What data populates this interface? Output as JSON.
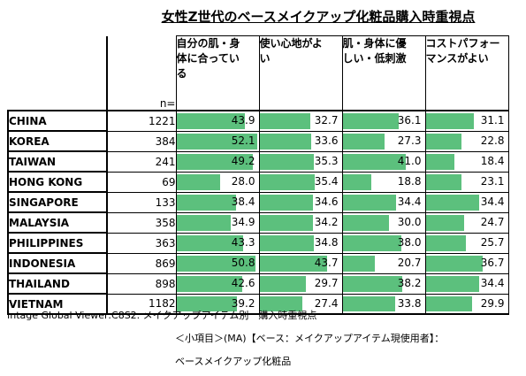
{
  "chart_data": {
    "type": "table",
    "title": "女性Z世代のベースメイクアップ化粧品購入時重視点",
    "n_label": "n=",
    "columns": [
      "自分の肌・身体に合っている",
      "使い心地がよい",
      "肌・身体に優しい・低刺激",
      "コストパフォーマンスがよい"
    ],
    "column_lines": [
      [
        "自分の肌・身",
        "体に合ってい",
        "る"
      ],
      [
        "使い心地がよ",
        "い"
      ],
      [
        "肌・身体に優",
        "しい・低刺激"
      ],
      [
        "コストパフォー",
        "マンスがよい"
      ]
    ],
    "max_value": 53,
    "rows": [
      {
        "country": "CHINA",
        "n": "1221",
        "values": [
          43.9,
          32.7,
          36.1,
          31.1
        ]
      },
      {
        "country": "KOREA",
        "n": "384",
        "values": [
          52.1,
          33.6,
          27.3,
          22.8
        ]
      },
      {
        "country": "TAIWAN",
        "n": "241",
        "values": [
          49.2,
          35.3,
          41.0,
          18.4
        ]
      },
      {
        "country": "HONG KONG",
        "n": "69",
        "values": [
          28.0,
          35.4,
          18.8,
          23.1
        ]
      },
      {
        "country": "SINGAPORE",
        "n": "133",
        "values": [
          38.4,
          34.6,
          34.4,
          34.4
        ]
      },
      {
        "country": "MALAYSIA",
        "n": "358",
        "values": [
          34.9,
          34.2,
          30.0,
          24.7
        ]
      },
      {
        "country": "PHILIPPINES",
        "n": "363",
        "values": [
          43.3,
          34.8,
          38.0,
          25.7
        ]
      },
      {
        "country": "INDONESIA",
        "n": "869",
        "values": [
          50.8,
          43.7,
          20.7,
          36.7
        ]
      },
      {
        "country": "THAILAND",
        "n": "898",
        "values": [
          42.6,
          29.7,
          38.2,
          34.4
        ]
      },
      {
        "country": "VIETNAM",
        "n": "1182",
        "values": [
          39.2,
          27.4,
          33.8,
          29.9
        ]
      }
    ]
  },
  "colors": {
    "bar": "#5cc07d"
  },
  "notes": {
    "line1": "Intage Global Viewer:C8S2. メイクアップアイテム別　購入時重視点",
    "line2": "＜小項目＞(MA)【ベース：メイクアップアイテム現使用者】：",
    "line3": "ベースメイクアップ化粧品"
  }
}
